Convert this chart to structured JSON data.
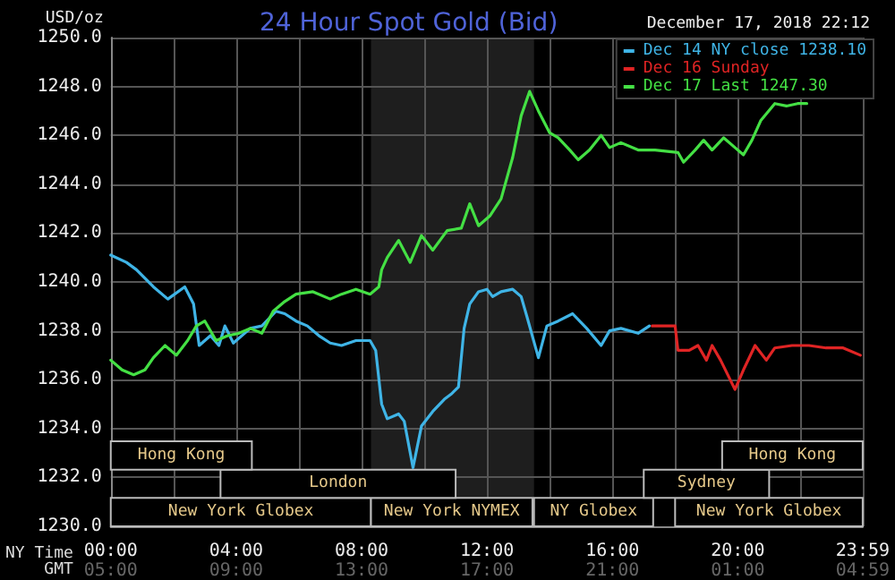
{
  "chart_data": {
    "type": "line",
    "title": "24 Hour Spot Gold (Bid)",
    "ylabel": "USD/oz",
    "xlabel": "NY Time",
    "x2label": "GMT",
    "legend_title": "December 17, 2018 22:12",
    "legend": "top right",
    "grid": true,
    "marker": "none",
    "line_style": "solid",
    "xlim": [
      0,
      23.983
    ],
    "xticks": [
      {
        "value": 0,
        "label": "00:00"
      },
      {
        "value": 2,
        "label": null
      },
      {
        "value": 4,
        "label": "04:00"
      },
      {
        "value": 6,
        "label": null
      },
      {
        "value": 8,
        "label": "08:00"
      },
      {
        "value": 10,
        "label": null
      },
      {
        "value": 12,
        "label": "12:00"
      },
      {
        "value": 14,
        "label": null
      },
      {
        "value": 16,
        "label": "16:00"
      },
      {
        "value": 18,
        "label": null
      },
      {
        "value": 20,
        "label": "20:00"
      },
      {
        "value": 22,
        "label": null
      },
      {
        "value": 23.983,
        "label": "23:59"
      }
    ],
    "x2lim": [
      "2018-12-17T05:00",
      "2018-12-18T04:59"
    ],
    "x2ticks": [
      {
        "value": "2018-12-17T05:00",
        "label": "05:00"
      },
      {
        "value": "2018-12-17T09:00",
        "label": "09:00"
      },
      {
        "value": "2018-12-17T13:00",
        "label": "13:00"
      },
      {
        "value": "2018-12-17T17:00",
        "label": "17:00"
      },
      {
        "value": "2018-12-17T21:00",
        "label": "21:00"
      },
      {
        "value": "2018-12-18T01:00",
        "label": "01:00"
      },
      {
        "value": "2018-12-18T04:59",
        "label": "04:59"
      }
    ],
    "ylim": [
      1230,
      1250
    ],
    "yticks": [
      {
        "value": 1230,
        "label": "1230.0"
      },
      {
        "value": 1232,
        "label": "1232.0"
      },
      {
        "value": 1234,
        "label": "1234.0"
      },
      {
        "value": 1236,
        "label": "1236.0"
      },
      {
        "value": 1238,
        "label": "1238.0"
      },
      {
        "value": 1240,
        "label": "1240.0"
      },
      {
        "value": 1242,
        "label": "1242.0"
      },
      {
        "value": 1244,
        "label": "1244.0"
      },
      {
        "value": 1246,
        "label": "1246.0"
      },
      {
        "value": 1248,
        "label": "1248.0"
      },
      {
        "value": 1250,
        "label": "1250.0"
      }
    ],
    "bands": [
      {
        "axis": "x",
        "from": 8.3,
        "to": 13.5,
        "color": "#1e1e1e"
      },
      {
        "axis": "x",
        "from": 0,
        "to": 8.3,
        "label": "New York Globex"
      },
      {
        "axis": "x",
        "from": 8.3,
        "to": 13.45,
        "label": "New York NYMEX"
      },
      {
        "axis": "x",
        "from": 13.5,
        "to": 17.3,
        "label": "NY Globex"
      },
      {
        "axis": "x",
        "from": 18.0,
        "to": 23.983,
        "label": "New York Globex"
      },
      {
        "axis": "x",
        "from": 3.5,
        "to": 11.0,
        "label": "London"
      },
      {
        "axis": "x",
        "from": 17.0,
        "to": 21.0,
        "label": "Sydney"
      },
      {
        "axis": "x",
        "from": 0,
        "to": 4.5,
        "label": "Hong Kong"
      },
      {
        "axis": "x",
        "from": 19.5,
        "to": 23.983,
        "label": "Hong Kong"
      }
    ],
    "series": [
      {
        "name": "Dec 14 NY close 1238.10",
        "color": "#3fb4e6",
        "x": [
          0,
          0.5,
          0.82,
          1.36,
          1.82,
          2.36,
          2.64,
          2.82,
          3.18,
          3.45,
          3.64,
          3.91,
          4.45,
          4.82,
          5.27,
          5.55,
          5.91,
          6.27,
          6.64,
          7.0,
          7.36,
          7.82,
          8.27,
          8.45,
          8.64,
          8.82,
          9.18,
          9.36,
          9.64,
          9.91,
          10.27,
          10.64,
          10.85,
          11.09,
          11.27,
          11.45,
          11.73,
          12.0,
          12.18,
          12.45,
          12.82,
          13.09,
          13.27,
          13.64,
          13.91,
          14.27,
          14.73,
          15.18,
          15.64,
          15.91,
          16.27,
          16.82,
          17.18
        ],
        "values": [
          1241.1,
          1240.8,
          1240.5,
          1239.8,
          1239.3,
          1239.8,
          1239.1,
          1237.4,
          1237.8,
          1237.4,
          1238.2,
          1237.5,
          1238.1,
          1238.2,
          1238.8,
          1238.7,
          1238.4,
          1238.2,
          1237.8,
          1237.5,
          1237.4,
          1237.6,
          1237.6,
          1237.2,
          1235.0,
          1234.4,
          1234.6,
          1234.3,
          1232.4,
          1234.1,
          1234.7,
          1235.2,
          1235.4,
          1235.7,
          1238.1,
          1239.1,
          1239.6,
          1239.7,
          1239.4,
          1239.6,
          1239.7,
          1239.4,
          1238.6,
          1236.9,
          1238.2,
          1238.4,
          1238.7,
          1238.1,
          1237.4,
          1238.0,
          1238.1,
          1237.9,
          1238.2
        ]
      },
      {
        "name": "Dec 16 Sunday",
        "color": "#e02424",
        "x": [
          17.27,
          18.0,
          18.09,
          18.45,
          18.73,
          19.0,
          19.18,
          19.45,
          19.91,
          20.18,
          20.55,
          20.91,
          21.18,
          21.73,
          22.27,
          22.82,
          23.36,
          23.91
        ],
        "values": [
          1238.2,
          1238.2,
          1237.2,
          1237.2,
          1237.4,
          1236.8,
          1237.4,
          1236.8,
          1235.6,
          1236.4,
          1237.4,
          1236.8,
          1237.3,
          1237.4,
          1237.4,
          1237.3,
          1237.3,
          1237.0
        ]
      },
      {
        "name": "Dec 17 Last 1247.30",
        "color": "#44e044",
        "x": [
          0,
          0.36,
          0.73,
          1.09,
          1.36,
          1.73,
          2.09,
          2.45,
          2.73,
          3.0,
          3.36,
          3.73,
          4.09,
          4.45,
          4.82,
          5.18,
          5.55,
          5.91,
          6.45,
          7.0,
          7.36,
          7.82,
          8.27,
          8.55,
          8.64,
          8.82,
          9.18,
          9.55,
          9.91,
          10.27,
          10.73,
          11.18,
          11.45,
          11.73,
          12.09,
          12.45,
          12.82,
          13.09,
          13.36,
          13.64,
          14.0,
          14.27,
          14.64,
          14.91,
          15.27,
          15.64,
          15.91,
          16.27,
          16.82,
          17.36,
          18.09,
          18.27,
          18.64,
          18.91,
          19.18,
          19.55,
          19.91,
          20.18,
          20.45,
          20.73,
          21.18,
          21.55,
          21.91,
          22.2
        ],
        "values": [
          1236.8,
          1236.4,
          1236.2,
          1236.4,
          1236.9,
          1237.4,
          1237.0,
          1237.6,
          1238.2,
          1238.4,
          1237.6,
          1237.8,
          1237.9,
          1238.1,
          1237.9,
          1238.8,
          1239.2,
          1239.5,
          1239.6,
          1239.3,
          1239.5,
          1239.7,
          1239.5,
          1239.8,
          1240.5,
          1241.0,
          1241.7,
          1240.8,
          1241.9,
          1241.3,
          1242.1,
          1242.2,
          1243.2,
          1242.3,
          1242.7,
          1243.4,
          1245.1,
          1246.8,
          1247.8,
          1247.0,
          1246.1,
          1245.9,
          1245.4,
          1245.0,
          1245.4,
          1246.0,
          1245.5,
          1245.7,
          1245.4,
          1245.4,
          1245.3,
          1244.9,
          1245.4,
          1245.8,
          1245.4,
          1245.9,
          1245.5,
          1245.2,
          1245.8,
          1246.6,
          1247.3,
          1247.2,
          1247.3,
          1247.3
        ]
      }
    ]
  }
}
